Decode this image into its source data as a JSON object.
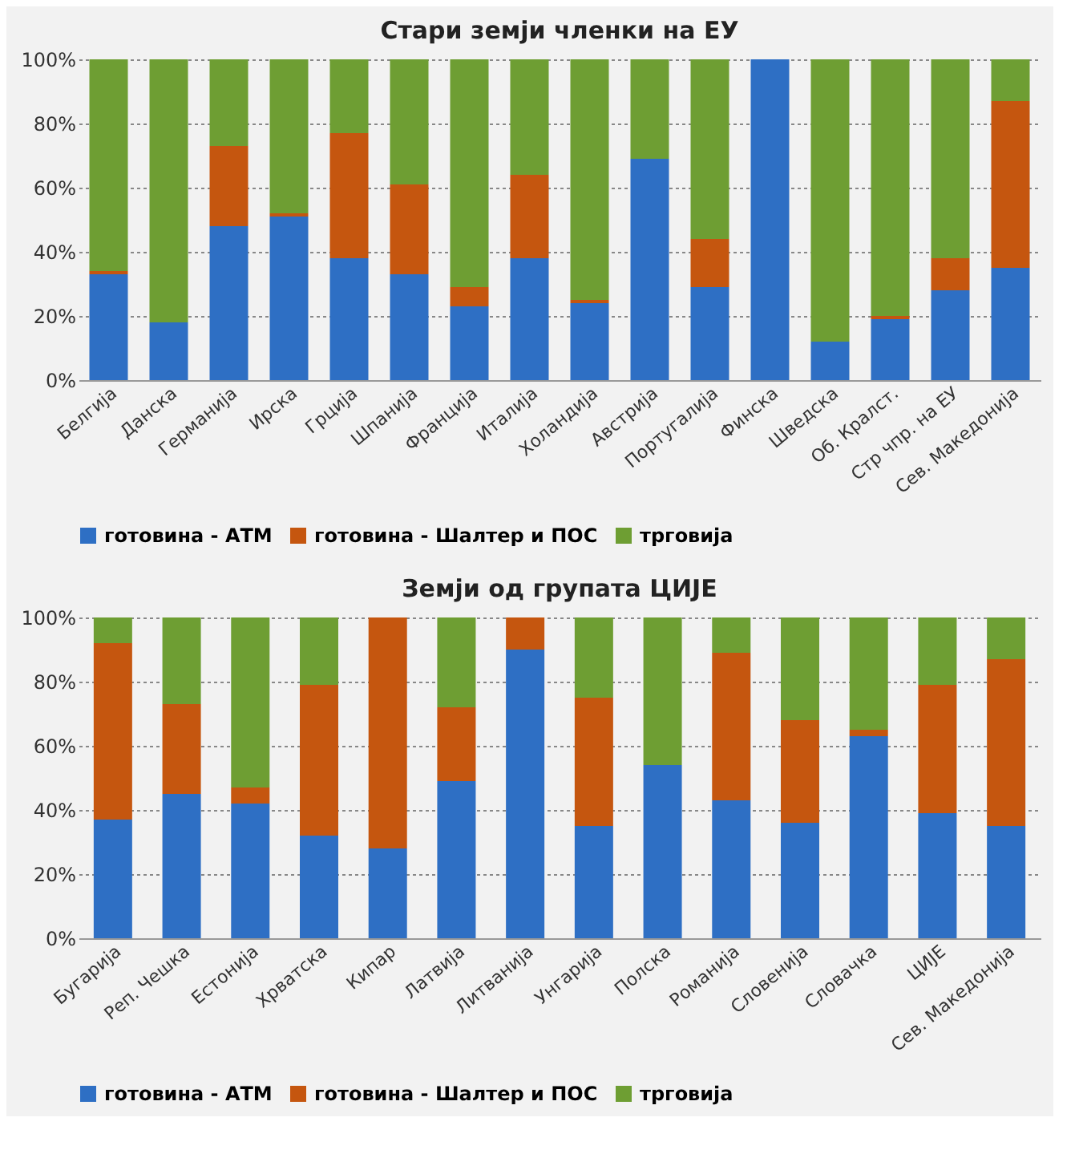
{
  "chart_data": [
    {
      "type": "bar",
      "stacked": true,
      "title": "Стари земји членки на ЕУ",
      "categories": [
        "Белгија",
        "Данска",
        "Германија",
        "Ирска",
        "Грција",
        "Шпанија",
        "Франција",
        "Италија",
        "Холандија",
        "Австрија",
        "Португалија",
        "Финска",
        "Шведска",
        "Об. Кралст.",
        "Стр чпр. на ЕУ",
        "Сев. Македонија"
      ],
      "series": [
        {
          "name": "готовина - АТМ",
          "color": "#2e6fc4",
          "values": [
            33,
            18,
            48,
            51,
            38,
            33,
            23,
            38,
            24,
            69,
            29,
            100,
            12,
            19,
            28,
            35
          ]
        },
        {
          "name": "готовина - Шалтер и ПОС",
          "color": "#c5560f",
          "values": [
            1,
            0,
            25,
            1,
            39,
            28,
            6,
            26,
            1,
            0,
            15,
            0,
            0,
            1,
            10,
            52
          ]
        },
        {
          "name": "трговија",
          "color": "#6e9e33",
          "values": [
            66,
            82,
            27,
            48,
            23,
            39,
            71,
            36,
            75,
            31,
            56,
            0,
            88,
            80,
            62,
            13
          ]
        }
      ],
      "ylim": [
        0,
        100
      ],
      "yticks": [
        {
          "value": 0,
          "label": "0%"
        },
        {
          "value": 20,
          "label": "20%"
        },
        {
          "value": 40,
          "label": "40%"
        },
        {
          "value": 60,
          "label": "60%"
        },
        {
          "value": 80,
          "label": "80%"
        },
        {
          "value": 100,
          "label": "100%"
        }
      ],
      "grid": "y",
      "legend": "bottom"
    },
    {
      "type": "bar",
      "stacked": true,
      "title": "Земји од групата ЦИЈЕ",
      "categories": [
        "Бугарија",
        "Реп. Чешка",
        "Естонија",
        "Хрватска",
        "Кипар",
        "Латвија",
        "Литванија",
        "Унгарија",
        "Полска",
        "Романија",
        "Словенија",
        "Словачка",
        "ЦИЈЕ",
        "Сев. Македонија"
      ],
      "series": [
        {
          "name": "готовина - АТМ",
          "color": "#2e6fc4",
          "values": [
            37,
            45,
            42,
            32,
            28,
            49,
            90,
            35,
            54,
            43,
            36,
            63,
            39,
            35
          ]
        },
        {
          "name": "готовина - Шалтер и ПОС",
          "color": "#c5560f",
          "values": [
            55,
            28,
            5,
            47,
            72,
            23,
            10,
            40,
            0,
            46,
            32,
            2,
            40,
            52
          ]
        },
        {
          "name": "трговија",
          "color": "#6e9e33",
          "values": [
            8,
            27,
            53,
            21,
            0,
            28,
            0,
            25,
            46,
            11,
            32,
            35,
            21,
            13
          ]
        }
      ],
      "ylim": [
        0,
        100
      ],
      "yticks": [
        {
          "value": 0,
          "label": "0%"
        },
        {
          "value": 20,
          "label": "20%"
        },
        {
          "value": 40,
          "label": "40%"
        },
        {
          "value": 60,
          "label": "60%"
        },
        {
          "value": 80,
          "label": "80%"
        },
        {
          "value": 100,
          "label": "100%"
        }
      ],
      "grid": "y",
      "legend": "bottom"
    }
  ]
}
